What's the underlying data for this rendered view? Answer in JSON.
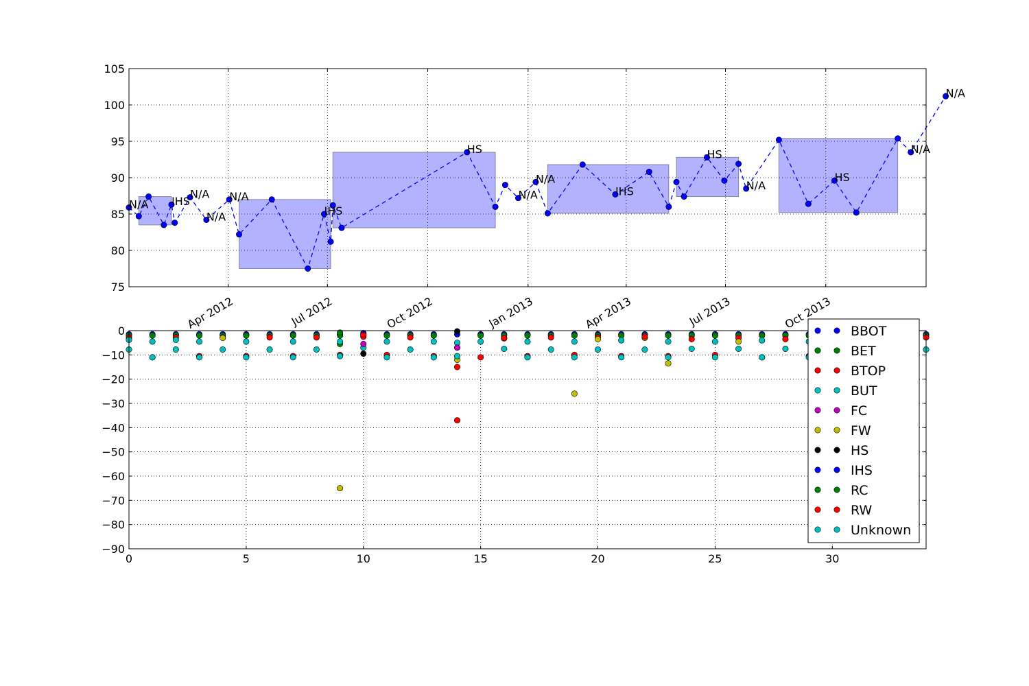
{
  "chart_data": [
    {
      "type": "line",
      "title": "",
      "xlabel": "",
      "ylabel": "",
      "ylim": [
        75,
        105
      ],
      "xlim": [
        "2012-01-01",
        "2013-12-31"
      ],
      "yticks": [
        "75",
        "80",
        "85",
        "90",
        "95",
        "100",
        "105"
      ],
      "xticks": [
        {
          "date": "2012-04-01",
          "label": "Apr 2012"
        },
        {
          "date": "2012-07-01",
          "label": "Jul 2012"
        },
        {
          "date": "2012-10-01",
          "label": "Oct 2012"
        },
        {
          "date": "2013-01-01",
          "label": "Jan 2013"
        },
        {
          "date": "2013-04-01",
          "label": "Apr 2013"
        },
        {
          "date": "2013-07-01",
          "label": "Jul 2013"
        },
        {
          "date": "2013-10-01",
          "label": "Oct 2013"
        }
      ],
      "grid": true,
      "line_style": "dashed",
      "line_color": "#0000ff",
      "box_color": "#0000ff",
      "series": [
        {
          "points": [
            {
              "x": "2012-01-01",
              "y": 85.9
            },
            {
              "x": "2012-01-10",
              "y": 84.7
            },
            {
              "x": "2012-01-19",
              "y": 87.4
            },
            {
              "x": "2012-02-02",
              "y": 83.5
            },
            {
              "x": "2012-02-09",
              "y": 86.3
            },
            {
              "x": "2012-02-12",
              "y": 83.8
            },
            {
              "x": "2012-02-26",
              "y": 87.3
            },
            {
              "x": "2012-03-12",
              "y": 84.2
            },
            {
              "x": "2012-04-02",
              "y": 87.0
            },
            {
              "x": "2012-04-11",
              "y": 82.2
            },
            {
              "x": "2012-05-11",
              "y": 87.0
            },
            {
              "x": "2012-06-13",
              "y": 77.5
            },
            {
              "x": "2012-06-28",
              "y": 85.0
            },
            {
              "x": "2012-07-04",
              "y": 81.2
            },
            {
              "x": "2012-07-06",
              "y": 86.2
            },
            {
              "x": "2012-07-14",
              "y": 83.1
            },
            {
              "x": "2012-11-06",
              "y": 93.5
            },
            {
              "x": "2012-12-02",
              "y": 86.0
            },
            {
              "x": "2012-12-11",
              "y": 89.0
            },
            {
              "x": "2012-12-23",
              "y": 87.2
            },
            {
              "x": "2013-01-08",
              "y": 89.4
            },
            {
              "x": "2013-01-19",
              "y": 85.1
            },
            {
              "x": "2013-02-20",
              "y": 91.8
            },
            {
              "x": "2013-03-22",
              "y": 87.7
            },
            {
              "x": "2013-04-22",
              "y": 90.8
            },
            {
              "x": "2013-05-10",
              "y": 86.0
            },
            {
              "x": "2013-05-17",
              "y": 89.4
            },
            {
              "x": "2013-05-24",
              "y": 87.4
            },
            {
              "x": "2013-06-14",
              "y": 92.8
            },
            {
              "x": "2013-06-30",
              "y": 89.6
            },
            {
              "x": "2013-07-13",
              "y": 91.9
            },
            {
              "x": "2013-07-20",
              "y": 88.5
            },
            {
              "x": "2013-08-19",
              "y": 95.2
            },
            {
              "x": "2013-09-15",
              "y": 86.4
            },
            {
              "x": "2013-10-09",
              "y": 89.6
            },
            {
              "x": "2013-10-29",
              "y": 85.2
            },
            {
              "x": "2013-12-06",
              "y": 95.4
            },
            {
              "x": "2013-12-18",
              "y": 93.5
            },
            {
              "x": "2014-01-19",
              "y": 101.2
            }
          ]
        }
      ],
      "boxes": [
        {
          "x0": "2012-01-10",
          "x1": "2012-02-09",
          "y0": 83.5,
          "y1": 87.4
        },
        {
          "x0": "2012-04-11",
          "x1": "2012-07-04",
          "y0": 77.5,
          "y1": 87.0
        },
        {
          "x0": "2012-07-06",
          "x1": "2012-12-02",
          "y0": 83.1,
          "y1": 93.5
        },
        {
          "x0": "2013-01-19",
          "x1": "2013-05-10",
          "y0": 85.1,
          "y1": 91.8
        },
        {
          "x0": "2013-05-17",
          "x1": "2013-07-13",
          "y0": 87.4,
          "y1": 92.8
        },
        {
          "x0": "2013-08-19",
          "x1": "2013-12-06",
          "y0": 85.2,
          "y1": 95.4
        }
      ],
      "annotations": [
        {
          "text": "N/A",
          "x": "2012-01-01",
          "y": 85.9
        },
        {
          "text": "IHS",
          "x": "2012-02-09",
          "y": 86.3
        },
        {
          "text": "N/A",
          "x": "2012-02-26",
          "y": 87.3
        },
        {
          "text": "N/A",
          "x": "2012-03-12",
          "y": 84.2
        },
        {
          "text": "N/A",
          "x": "2012-04-02",
          "y": 87.0
        },
        {
          "text": "IHS",
          "x": "2012-06-28",
          "y": 85.0
        },
        {
          "text": "HS",
          "x": "2012-11-06",
          "y": 93.5
        },
        {
          "text": "N/A",
          "x": "2012-12-23",
          "y": 87.2
        },
        {
          "text": "N/A",
          "x": "2013-01-08",
          "y": 89.4
        },
        {
          "text": "IHS",
          "x": "2013-03-22",
          "y": 87.7
        },
        {
          "text": "HS",
          "x": "2013-06-14",
          "y": 92.8
        },
        {
          "text": "N/A",
          "x": "2013-07-20",
          "y": 88.5
        },
        {
          "text": "HS",
          "x": "2013-10-09",
          "y": 89.6
        },
        {
          "text": "N/A",
          "x": "2013-12-18",
          "y": 93.5
        },
        {
          "text": "N/A",
          "x": "2014-01-19",
          "y": 101.2
        }
      ]
    },
    {
      "type": "scatter",
      "title": "",
      "xlabel": "",
      "ylabel": "",
      "xlim": [
        0,
        34
      ],
      "ylim": [
        -90,
        0
      ],
      "xticks": [
        "0",
        "5",
        "10",
        "15",
        "20",
        "25",
        "30"
      ],
      "yticks": [
        "0",
        "−10",
        "−20",
        "−30",
        "−40",
        "−50",
        "−60",
        "−70",
        "−80",
        "−90"
      ],
      "grid": true,
      "legend_position": "right",
      "series": [
        {
          "name": "BBOT",
          "color": "#0000ff",
          "points": [
            [
              0,
              -1.5
            ],
            [
              1,
              -1.5
            ],
            [
              2,
              -1.5
            ],
            [
              3,
              -1.5
            ],
            [
              4,
              -1.5
            ],
            [
              5,
              -1.5
            ],
            [
              6,
              -1.5
            ],
            [
              7,
              -1.5
            ],
            [
              8,
              -1.5
            ],
            [
              9,
              -1.5
            ],
            [
              10,
              -1.5
            ],
            [
              11,
              -1.5
            ],
            [
              12,
              -1.5
            ],
            [
              13,
              -1.5
            ],
            [
              14,
              -1.5
            ],
            [
              15,
              -1.5
            ],
            [
              16,
              -1.5
            ],
            [
              17,
              -1.5
            ],
            [
              18,
              -1.5
            ],
            [
              19,
              -1.5
            ],
            [
              20,
              -1.5
            ],
            [
              21,
              -1.5
            ],
            [
              22,
              -1.5
            ],
            [
              23,
              -1.5
            ],
            [
              24,
              -1.5
            ],
            [
              25,
              -1.5
            ],
            [
              26,
              -1.5
            ],
            [
              27,
              -1.5
            ],
            [
              28,
              -1.5
            ],
            [
              29,
              -1.5
            ],
            [
              34,
              -1.5
            ]
          ]
        },
        {
          "name": "BET",
          "color": "#008000",
          "points": [
            [
              0,
              -2
            ],
            [
              1,
              -2
            ],
            [
              2,
              -2
            ],
            [
              3,
              -2
            ],
            [
              4,
              -2
            ],
            [
              5,
              -2
            ],
            [
              6,
              -2
            ],
            [
              7,
              -2
            ],
            [
              8,
              -2
            ],
            [
              9,
              -2
            ],
            [
              9,
              -5.5
            ],
            [
              10,
              -2
            ],
            [
              11,
              -2
            ],
            [
              12,
              -2
            ],
            [
              13,
              -2
            ],
            [
              15,
              -2
            ],
            [
              16,
              -2
            ],
            [
              17,
              -2
            ],
            [
              18,
              -2
            ],
            [
              19,
              -2
            ],
            [
              20,
              -2
            ],
            [
              21,
              -2
            ],
            [
              22,
              -2
            ],
            [
              23,
              -2
            ],
            [
              24,
              -2
            ],
            [
              25,
              -2
            ],
            [
              26,
              -2
            ],
            [
              27,
              -2
            ],
            [
              28,
              -2
            ],
            [
              29,
              -2
            ],
            [
              34,
              -2
            ]
          ]
        },
        {
          "name": "BTOP",
          "color": "#ff0000",
          "points": [
            [
              0,
              -2.8
            ],
            [
              1,
              -11
            ],
            [
              2,
              -2.8
            ],
            [
              3,
              -10.5
            ],
            [
              4,
              -2.8
            ],
            [
              5,
              -10.5
            ],
            [
              6,
              -2.8
            ],
            [
              7,
              -10.5
            ],
            [
              8,
              -2.8
            ],
            [
              9,
              -10
            ],
            [
              10,
              -2.5
            ],
            [
              11,
              -10
            ],
            [
              12,
              -2.8
            ],
            [
              13,
              -10.5
            ],
            [
              14,
              -15
            ],
            [
              15,
              -11
            ],
            [
              16,
              -3.2
            ],
            [
              17,
              -10.5
            ],
            [
              18,
              -2.8
            ],
            [
              19,
              -10
            ],
            [
              20,
              -2.8
            ],
            [
              21,
              -10.5
            ],
            [
              22,
              -2.8
            ],
            [
              23,
              -10.5
            ],
            [
              24,
              -3.5
            ],
            [
              25,
              -10
            ],
            [
              26,
              -3
            ],
            [
              27,
              -11
            ],
            [
              28,
              -3.5
            ],
            [
              29,
              -10.5
            ],
            [
              34,
              -2.8
            ]
          ]
        },
        {
          "name": "BUT",
          "color": "#00bfbf",
          "points": [
            [
              0,
              -7.8
            ],
            [
              1,
              -4.5
            ],
            [
              2,
              -7.8
            ],
            [
              3,
              -4.5
            ],
            [
              4,
              -7.8
            ],
            [
              5,
              -4.5
            ],
            [
              6,
              -7.8
            ],
            [
              7,
              -4.5
            ],
            [
              8,
              -7.8
            ],
            [
              9,
              -4.5
            ],
            [
              10,
              -7
            ],
            [
              11,
              -4.5
            ],
            [
              12,
              -7.8
            ],
            [
              13,
              -4.5
            ],
            [
              14,
              -5
            ],
            [
              15,
              -4.5
            ],
            [
              16,
              -7.5
            ],
            [
              17,
              -4.5
            ],
            [
              18,
              -7.8
            ],
            [
              19,
              -4.5
            ],
            [
              20,
              -7.8
            ],
            [
              21,
              -4
            ],
            [
              22,
              -7.8
            ],
            [
              23,
              -4.5
            ],
            [
              24,
              -7.5
            ],
            [
              25,
              -4.5
            ],
            [
              26,
              -7.5
            ],
            [
              27,
              -4
            ],
            [
              28,
              -7.5
            ],
            [
              29,
              -4.5
            ],
            [
              34,
              -7.8
            ]
          ]
        },
        {
          "name": "FC",
          "color": "#bf00bf",
          "points": [
            [
              10,
              -5.5
            ],
            [
              14,
              -7
            ]
          ]
        },
        {
          "name": "FW",
          "color": "#bfbf00",
          "points": [
            [
              0,
              -3.5
            ],
            [
              4,
              -3
            ],
            [
              9,
              -65
            ],
            [
              14,
              -12
            ],
            [
              19,
              -26
            ],
            [
              20,
              -3.5
            ],
            [
              22,
              -3
            ],
            [
              23,
              -13.5
            ],
            [
              26,
              -4.5
            ]
          ]
        },
        {
          "name": "HS",
          "color": "#000000",
          "points": [
            [
              10,
              -9.5
            ],
            [
              14,
              -0.3
            ]
          ]
        },
        {
          "name": "IHS",
          "color": "#0000ff",
          "points": [
            [
              10,
              -1
            ]
          ]
        },
        {
          "name": "RC",
          "color": "#008000",
          "points": [
            [
              9,
              -0.8
            ]
          ]
        },
        {
          "name": "RW",
          "color": "#ff0000",
          "points": [
            [
              10,
              -1.8
            ],
            [
              14,
              -37
            ],
            [
              16,
              -3
            ],
            [
              22,
              -2.5
            ]
          ]
        },
        {
          "name": "Unknown",
          "color": "#00bfbf",
          "points": [
            [
              0,
              -3.8
            ],
            [
              1,
              -11
            ],
            [
              2,
              -3.8
            ],
            [
              3,
              -11
            ],
            [
              5,
              -11
            ],
            [
              7,
              -11
            ],
            [
              9,
              -10.5
            ],
            [
              11,
              -11
            ],
            [
              13,
              -11
            ],
            [
              14,
              -10.5
            ],
            [
              17,
              -11
            ],
            [
              19,
              -11
            ],
            [
              21,
              -11
            ],
            [
              23,
              -11
            ],
            [
              25,
              -11
            ],
            [
              27,
              -11
            ],
            [
              29,
              -11
            ]
          ]
        }
      ]
    }
  ]
}
